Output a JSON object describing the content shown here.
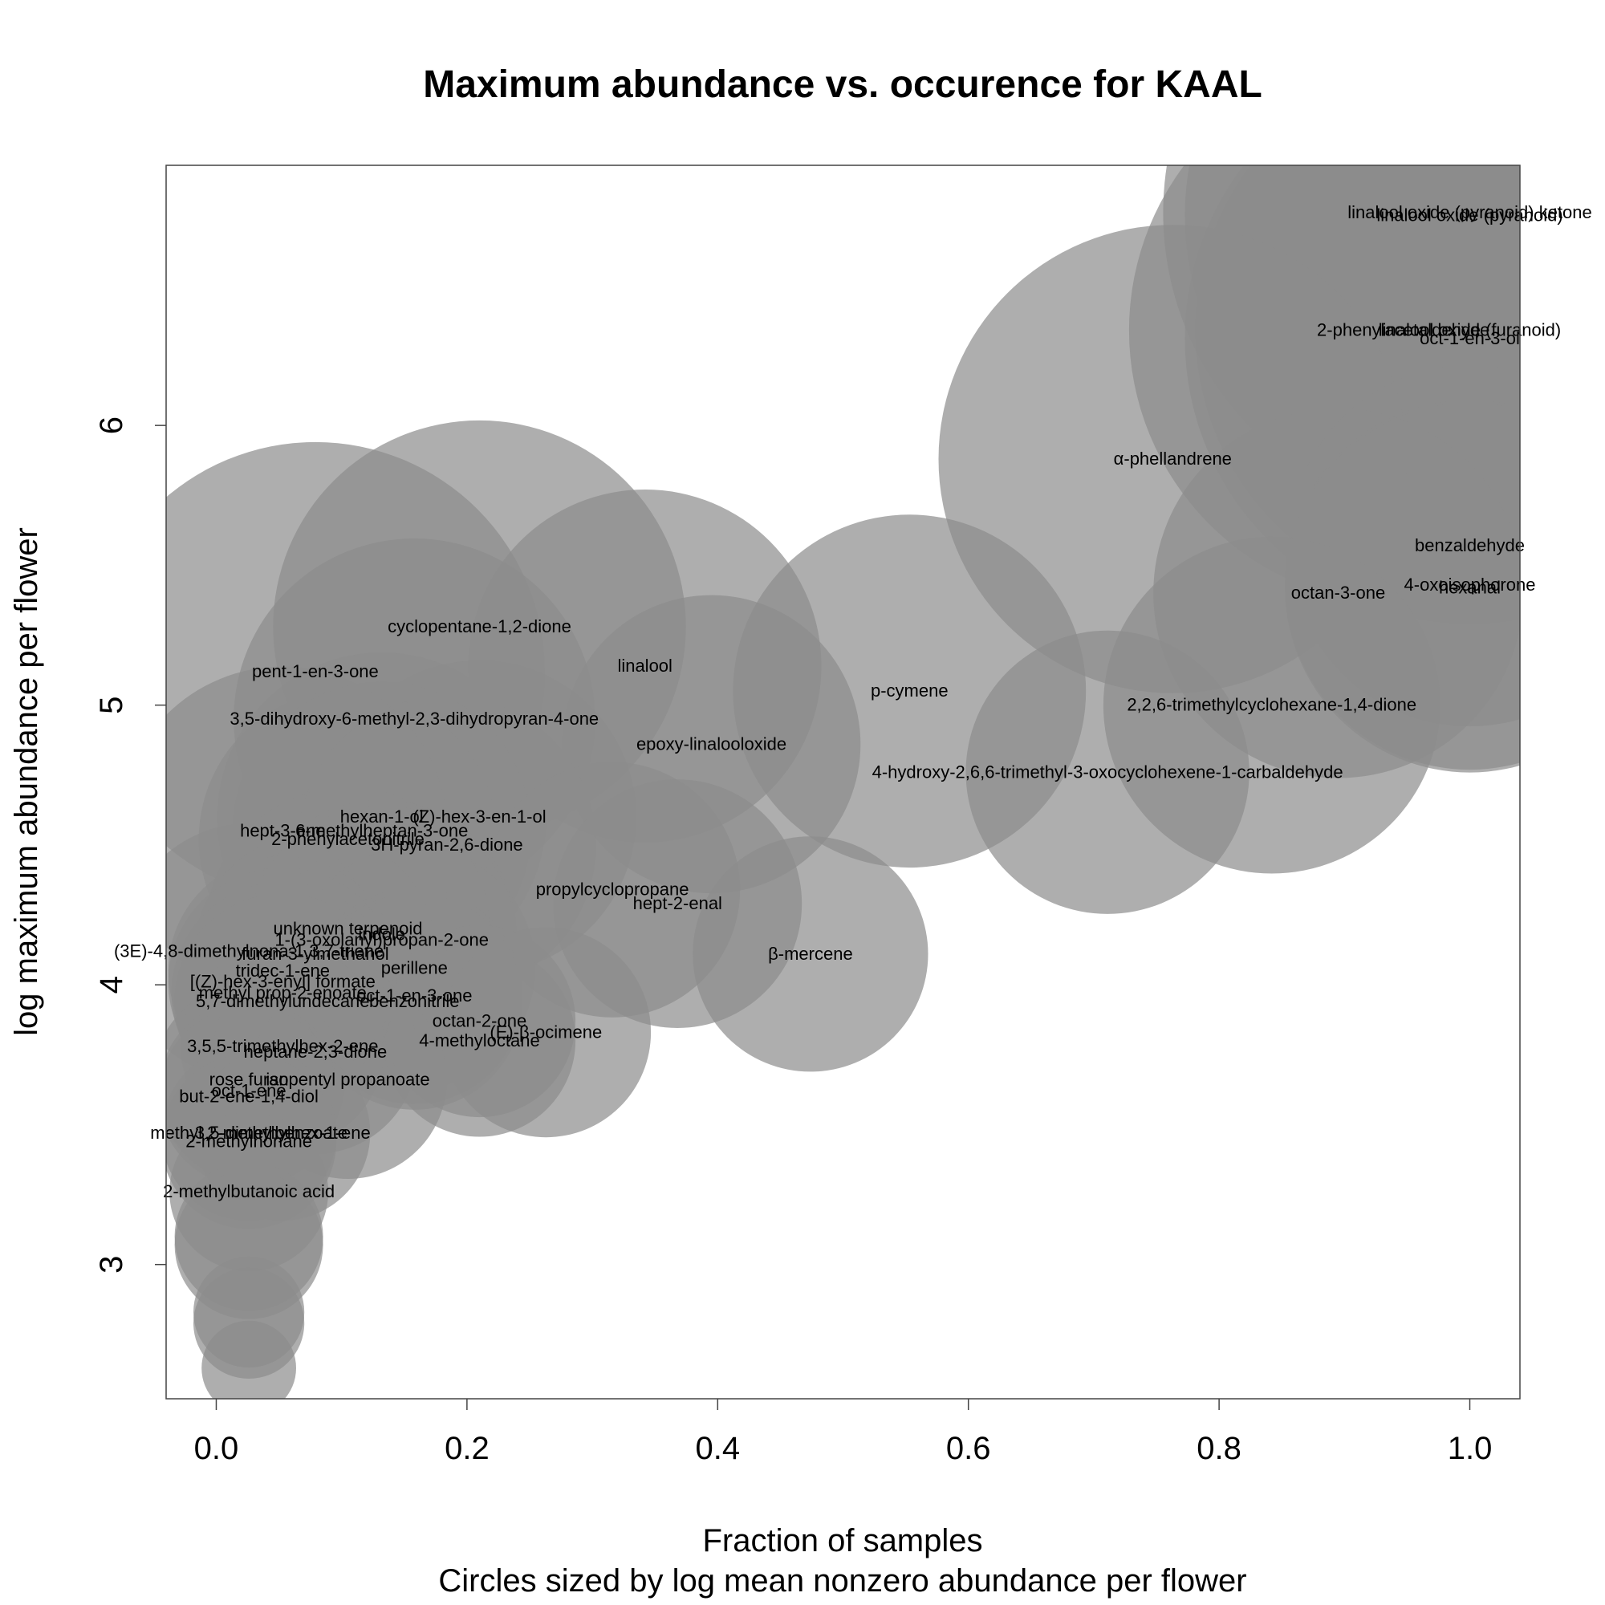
{
  "chart_data": {
    "type": "scatter",
    "title": "Maximum abundance vs. occurence for  KAAL",
    "xlabel": "Fraction of samples",
    "xlabel2": "Circles sized by log mean nonzero abundance per flower",
    "ylabel": "log maximum abundance per flower",
    "xlim": [
      -0.04,
      1.04
    ],
    "ylim": [
      2.52,
      6.93
    ],
    "x_ticks": [
      "0.0",
      "0.2",
      "0.4",
      "0.6",
      "0.8",
      "1.0"
    ],
    "x_tick_values": [
      0.0,
      0.2,
      0.4,
      0.6,
      0.8,
      1.0
    ],
    "y_ticks": [
      "3",
      "4",
      "5",
      "6"
    ],
    "y_tick_values": [
      3,
      4,
      5,
      6
    ],
    "size_variable": "log mean nonzero abundance per flower",
    "color": "#8c8c8c",
    "points": [
      {
        "label": "linalool oxide (pyranoid) ketone",
        "x": 1.0,
        "y": 6.76,
        "size": 6.2
      },
      {
        "label": "linalool oxide (pyranoid)",
        "x": 1.0,
        "y": 6.75,
        "size": 6.0
      },
      {
        "label": "2-phenylacetaldehyde",
        "x": 0.947,
        "y": 6.34,
        "size": 5.9
      },
      {
        "label": "linalool oxide (furanoid)",
        "x": 1.0,
        "y": 6.34,
        "size": 5.9
      },
      {
        "label": "oct-1-en-3-ol",
        "x": 1.0,
        "y": 6.31,
        "size": 6.0
      },
      {
        "label": "α-phellandrene",
        "x": 0.763,
        "y": 5.88,
        "size": 5.5
      },
      {
        "label": "benzaldehyde",
        "x": 1.0,
        "y": 5.57,
        "size": 4.9
      },
      {
        "label": "4-oxoisophorone",
        "x": 1.0,
        "y": 5.43,
        "size": 4.95
      },
      {
        "label": "hexanal",
        "x": 1.0,
        "y": 5.42,
        "size": 4.95
      },
      {
        "label": "octan-3-one",
        "x": 0.895,
        "y": 5.4,
        "size": 4.95
      },
      {
        "label": "cyclopentane-1,2-dione",
        "x": 0.21,
        "y": 5.28,
        "size": 5.2
      },
      {
        "label": "linalool",
        "x": 0.342,
        "y": 5.14,
        "size": 4.85
      },
      {
        "label": "pent-1-en-3-one",
        "x": 0.079,
        "y": 5.12,
        "size": 5.45
      },
      {
        "label": "p-cymene",
        "x": 0.553,
        "y": 5.05,
        "size": 4.85
      },
      {
        "label": "2,2,6-trimethylcyclohexane-1,4-dione",
        "x": 0.842,
        "y": 5.0,
        "size": 4.75
      },
      {
        "label": "3,5-dihydroxy-6-methyl-2,3-dihydropyran-4-one",
        "x": 0.158,
        "y": 4.95,
        "size": 4.9
      },
      {
        "label": "epoxy-linalooloxide",
        "x": 0.395,
        "y": 4.86,
        "size": 4.5
      },
      {
        "label": "4-hydroxy-2,6,6-trimethyl-3-oxocyclohexene-1-carbaldehyde",
        "x": 0.711,
        "y": 4.76,
        "size": 4.4
      },
      {
        "label": "hexan-1-ol",
        "x": 0.132,
        "y": 4.6,
        "size": 4.7
      },
      {
        "label": "(Z)-hex-3-en-1-ol",
        "x": 0.21,
        "y": 4.6,
        "size": 4.6
      },
      {
        "label": "hept-3-ene",
        "x": 0.053,
        "y": 4.55,
        "size": 4.7
      },
      {
        "label": "6-methylheptan-3-one",
        "x": 0.132,
        "y": 4.55,
        "size": 4.5
      },
      {
        "label": "2-phenylacetonitrile",
        "x": 0.105,
        "y": 4.52,
        "size": 4.5
      },
      {
        "label": "3H-pyran-2,6-dione",
        "x": 0.184,
        "y": 4.5,
        "size": 4.5
      },
      {
        "label": "propylcyclopropane",
        "x": 0.316,
        "y": 4.34,
        "size": 4.2
      },
      {
        "label": "hept-2-enal",
        "x": 0.368,
        "y": 4.29,
        "size": 4.15
      },
      {
        "label": "unknown terpenoid",
        "x": 0.105,
        "y": 4.2,
        "size": 4.4
      },
      {
        "label": "indole",
        "x": 0.132,
        "y": 4.18,
        "size": 4.3
      },
      {
        "label": "1-(3-oxolanyl)propan-2-one",
        "x": 0.132,
        "y": 4.16,
        "size": 4.3
      },
      {
        "label": "(3E)-4,8-dimethylnona-1,3,7-triene",
        "x": 0.026,
        "y": 4.12,
        "size": 4.2
      },
      {
        "label": "furan-3-ylmethanol",
        "x": 0.079,
        "y": 4.11,
        "size": 4.1
      },
      {
        "label": "β-mercene",
        "x": 0.474,
        "y": 4.11,
        "size": 4.05
      },
      {
        "label": "perillene",
        "x": 0.158,
        "y": 4.06,
        "size": 4.1
      },
      {
        "label": "tridec-1-ene",
        "x": 0.053,
        "y": 4.05,
        "size": 4.0
      },
      {
        "label": "[(Z)-hex-3-enyl] formate",
        "x": 0.053,
        "y": 4.01,
        "size": 4.0
      },
      {
        "label": "methyl prop-2-enoate",
        "x": 0.053,
        "y": 3.97,
        "size": 3.95
      },
      {
        "label": "oct-1-en-3-one",
        "x": 0.158,
        "y": 3.96,
        "size": 3.9
      },
      {
        "label": "5,7-dimethylundecane",
        "x": 0.053,
        "y": 3.94,
        "size": 3.9
      },
      {
        "label": "benzonitrile",
        "x": 0.158,
        "y": 3.94,
        "size": 3.9
      },
      {
        "label": "octan-2-one",
        "x": 0.21,
        "y": 3.87,
        "size": 3.7
      },
      {
        "label": "(E)-β-ocimene",
        "x": 0.263,
        "y": 3.83,
        "size": 3.85
      },
      {
        "label": "4-methyloctane",
        "x": 0.21,
        "y": 3.8,
        "size": 3.7
      },
      {
        "label": "3,5,5-trimethylhex-2-ene",
        "x": 0.053,
        "y": 3.78,
        "size": 3.8
      },
      {
        "label": "heptane-2,3-dione",
        "x": 0.079,
        "y": 3.76,
        "size": 3.8
      },
      {
        "label": "isopentyl propanoate",
        "x": 0.105,
        "y": 3.66,
        "size": 3.75
      },
      {
        "label": "rose furan",
        "x": 0.026,
        "y": 3.66,
        "size": 3.7
      },
      {
        "label": "oct-1-ene",
        "x": 0.026,
        "y": 3.62,
        "size": 3.6
      },
      {
        "label": "but-2-ene-1,4-diol",
        "x": 0.026,
        "y": 3.6,
        "size": 3.6
      },
      {
        "label": "3,5-dimethylhex-1-ene",
        "x": 0.053,
        "y": 3.47,
        "size": 3.55
      },
      {
        "label": "methyl 2-methylbenzoate",
        "x": 0.026,
        "y": 3.47,
        "size": 3.55
      },
      {
        "label": "2-methylnonane",
        "x": 0.026,
        "y": 3.44,
        "size": 3.55
      },
      {
        "label": "2-methylbutanoic acid",
        "x": 0.026,
        "y": 3.26,
        "size": 3.4
      },
      {
        "label": "",
        "x": 0.026,
        "y": 3.1,
        "size": 3.3
      },
      {
        "label": "",
        "x": 0.026,
        "y": 3.07,
        "size": 3.3
      },
      {
        "label": "",
        "x": 0.026,
        "y": 2.83,
        "size": 2.9
      },
      {
        "label": "",
        "x": 0.026,
        "y": 2.79,
        "size": 2.9
      },
      {
        "label": "",
        "x": 0.026,
        "y": 2.63,
        "size": 2.7
      }
    ]
  }
}
